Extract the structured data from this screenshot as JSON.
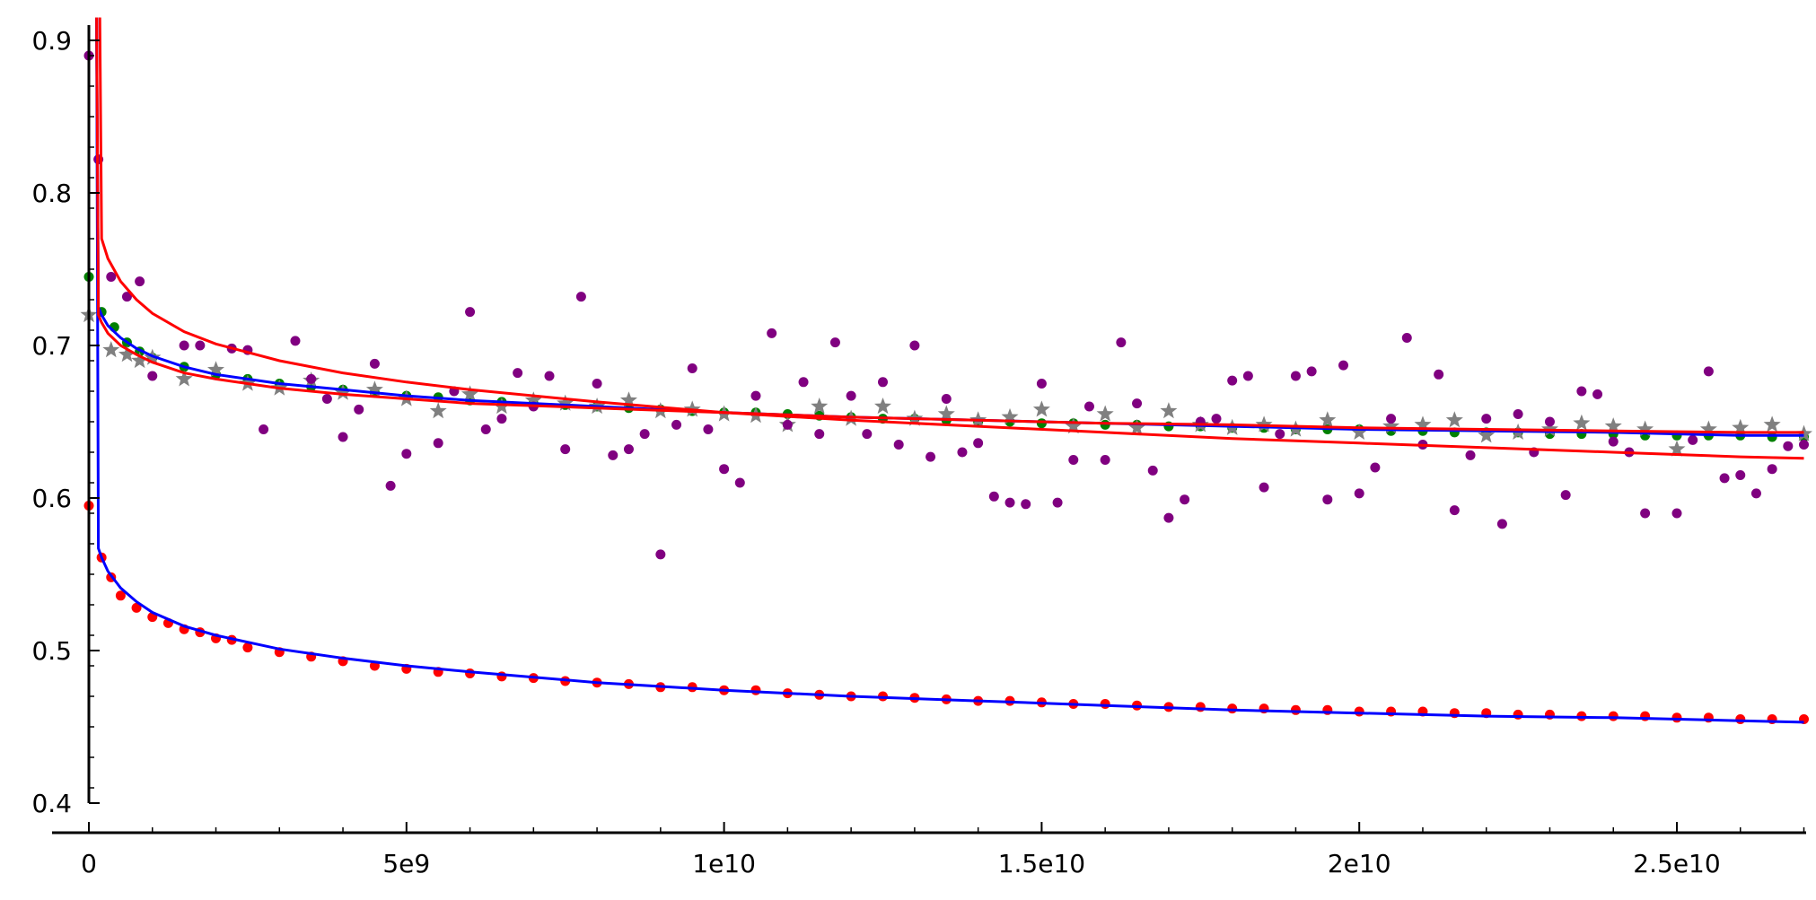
{
  "chart_data": {
    "type": "scatter",
    "title": "",
    "xlabel": "",
    "ylabel": "",
    "xlim": [
      -550000000.0,
      27500000000.0
    ],
    "ylim": [
      0.375,
      0.915
    ],
    "grid": false,
    "legend": "none",
    "x_ticks": [
      {
        "value": 0,
        "label": "0"
      },
      {
        "value": 5000000000.0,
        "label": "5e9"
      },
      {
        "value": 10000000000.0,
        "label": "1e10"
      },
      {
        "value": 15000000000.0,
        "label": "1.5e10"
      },
      {
        "value": 20000000000.0,
        "label": "2e10"
      },
      {
        "value": 25000000000.0,
        "label": "2.5e10"
      }
    ],
    "y_ticks": [
      {
        "value": 0.4,
        "label": "0.4"
      },
      {
        "value": 0.5,
        "label": "0.5"
      },
      {
        "value": 0.6,
        "label": "0.6"
      },
      {
        "value": 0.7,
        "label": "0.7"
      },
      {
        "value": 0.8,
        "label": "0.8"
      },
      {
        "value": 0.9,
        "label": "0.9"
      }
    ],
    "series": [
      {
        "kind": "points",
        "color": "#ff0000",
        "marker": "circle",
        "x": [
          0,
          200000000.0,
          350000000.0,
          500000000.0,
          750000000.0,
          1000000000.0,
          1250000000.0,
          1500000000.0,
          1750000000.0,
          2000000000.0,
          2250000000.0,
          2500000000.0,
          3000000000.0,
          3500000000.0,
          4000000000.0,
          4500000000.0,
          5000000000.0,
          5500000000.0,
          6000000000.0,
          6500000000.0,
          7000000000.0,
          7500000000.0,
          8000000000.0,
          8500000000.0,
          9000000000.0,
          9500000000.0,
          10000000000.0,
          10500000000.0,
          11000000000.0,
          11500000000.0,
          12000000000.0,
          12500000000.0,
          13000000000.0,
          13500000000.0,
          14000000000.0,
          14500000000.0,
          15000000000.0,
          15500000000.0,
          16000000000.0,
          16500000000.0,
          17000000000.0,
          17500000000.0,
          18000000000.0,
          18500000000.0,
          19000000000.0,
          19500000000.0,
          20000000000.0,
          20500000000.0,
          21000000000.0,
          21500000000.0,
          22000000000.0,
          22500000000.0,
          23000000000.0,
          23500000000.0,
          24000000000.0,
          24500000000.0,
          25000000000.0,
          25500000000.0,
          26000000000.0,
          26500000000.0,
          27000000000.0
        ],
        "y": [
          0.595,
          0.561,
          0.548,
          0.536,
          0.528,
          0.522,
          0.518,
          0.514,
          0.512,
          0.508,
          0.507,
          0.502,
          0.499,
          0.496,
          0.493,
          0.49,
          0.488,
          0.486,
          0.485,
          0.483,
          0.482,
          0.48,
          0.479,
          0.478,
          0.476,
          0.476,
          0.474,
          0.474,
          0.472,
          0.471,
          0.47,
          0.47,
          0.469,
          0.468,
          0.467,
          0.467,
          0.466,
          0.465,
          0.465,
          0.464,
          0.463,
          0.463,
          0.462,
          0.462,
          0.461,
          0.461,
          0.46,
          0.46,
          0.46,
          0.459,
          0.459,
          0.458,
          0.458,
          0.457,
          0.457,
          0.457,
          0.456,
          0.456,
          0.455,
          0.455,
          0.455
        ]
      },
      {
        "kind": "points",
        "color": "#008000",
        "marker": "circle",
        "x": [
          0,
          200000000.0,
          400000000.0,
          600000000.0,
          800000000.0,
          1000000000.0,
          1500000000.0,
          2000000000.0,
          2500000000.0,
          3000000000.0,
          3500000000.0,
          4000000000.0,
          4500000000.0,
          5000000000.0,
          5500000000.0,
          6000000000.0,
          6500000000.0,
          7000000000.0,
          7500000000.0,
          8000000000.0,
          8500000000.0,
          9000000000.0,
          9500000000.0,
          10000000000.0,
          10500000000.0,
          11000000000.0,
          11500000000.0,
          12000000000.0,
          12500000000.0,
          13000000000.0,
          13500000000.0,
          14000000000.0,
          14500000000.0,
          15000000000.0,
          15500000000.0,
          16000000000.0,
          16500000000.0,
          17000000000.0,
          17500000000.0,
          18000000000.0,
          18500000000.0,
          19000000000.0,
          19500000000.0,
          20000000000.0,
          20500000000.0,
          21000000000.0,
          21500000000.0,
          22000000000.0,
          22500000000.0,
          23000000000.0,
          23500000000.0,
          24000000000.0,
          24500000000.0,
          25000000000.0,
          25500000000.0,
          26000000000.0,
          26500000000.0,
          27000000000.0
        ],
        "y": [
          0.745,
          0.722,
          0.712,
          0.702,
          0.696,
          0.692,
          0.686,
          0.681,
          0.678,
          0.675,
          0.673,
          0.671,
          0.669,
          0.667,
          0.666,
          0.664,
          0.663,
          0.662,
          0.661,
          0.66,
          0.659,
          0.658,
          0.657,
          0.656,
          0.656,
          0.655,
          0.654,
          0.653,
          0.652,
          0.652,
          0.651,
          0.65,
          0.65,
          0.649,
          0.649,
          0.648,
          0.648,
          0.647,
          0.647,
          0.646,
          0.646,
          0.645,
          0.645,
          0.645,
          0.644,
          0.644,
          0.643,
          0.643,
          0.643,
          0.642,
          0.642,
          0.642,
          0.641,
          0.641,
          0.641,
          0.641,
          0.64,
          0.64
        ]
      },
      {
        "kind": "points",
        "color": "#808080",
        "marker": "star",
        "x": [
          0,
          350000000.0,
          600000000.0,
          800000000.0,
          1000000000.0,
          1500000000.0,
          2000000000.0,
          2500000000.0,
          3000000000.0,
          3500000000.0,
          4000000000.0,
          4500000000.0,
          5000000000.0,
          5500000000.0,
          6000000000.0,
          6500000000.0,
          7000000000.0,
          7500000000.0,
          8000000000.0,
          8500000000.0,
          9000000000.0,
          9500000000.0,
          10000000000.0,
          10500000000.0,
          11000000000.0,
          11500000000.0,
          12000000000.0,
          12500000000.0,
          13000000000.0,
          13500000000.0,
          14000000000.0,
          14500000000.0,
          15000000000.0,
          15500000000.0,
          16000000000.0,
          16500000000.0,
          17000000000.0,
          17500000000.0,
          18000000000.0,
          18500000000.0,
          19000000000.0,
          19500000000.0,
          20000000000.0,
          20500000000.0,
          21000000000.0,
          21500000000.0,
          22000000000.0,
          22500000000.0,
          23000000000.0,
          23500000000.0,
          24000000000.0,
          24500000000.0,
          25000000000.0,
          25500000000.0,
          26000000000.0,
          26500000000.0,
          27000000000.0
        ],
        "y": [
          0.72,
          0.697,
          0.694,
          0.69,
          0.692,
          0.678,
          0.684,
          0.675,
          0.672,
          0.677,
          0.669,
          0.671,
          0.665,
          0.657,
          0.668,
          0.66,
          0.664,
          0.662,
          0.66,
          0.664,
          0.657,
          0.658,
          0.655,
          0.654,
          0.648,
          0.66,
          0.652,
          0.66,
          0.652,
          0.655,
          0.651,
          0.653,
          0.658,
          0.647,
          0.655,
          0.646,
          0.657,
          0.648,
          0.646,
          0.648,
          0.645,
          0.651,
          0.643,
          0.647,
          0.648,
          0.651,
          0.641,
          0.643,
          0.645,
          0.649,
          0.647,
          0.645,
          0.632,
          0.645,
          0.646,
          0.648,
          0.642
        ]
      },
      {
        "kind": "points",
        "color": "#800080",
        "marker": "circle",
        "x": [
          0,
          150000000.0,
          350000000.0,
          600000000.0,
          800000000.0,
          1000000000.0,
          1500000000.0,
          1750000000.0,
          2250000000.0,
          2500000000.0,
          2750000000.0,
          3250000000.0,
          3500000000.0,
          3750000000.0,
          4000000000.0,
          4250000000.0,
          4500000000.0,
          4750000000.0,
          5000000000.0,
          5500000000.0,
          5750000000.0,
          6000000000.0,
          6250000000.0,
          6500000000.0,
          6750000000.0,
          7000000000.0,
          7250000000.0,
          7500000000.0,
          7750000000.0,
          8000000000.0,
          8250000000.0,
          8500000000.0,
          8750000000.0,
          9000000000.0,
          9250000000.0,
          9500000000.0,
          9750000000.0,
          10000000000.0,
          10250000000.0,
          10500000000.0,
          10750000000.0,
          11000000000.0,
          11250000000.0,
          11500000000.0,
          11750000000.0,
          12000000000.0,
          12250000000.0,
          12500000000.0,
          12750000000.0,
          13000000000.0,
          13250000000.0,
          13500000000.0,
          13750000000.0,
          14000000000.0,
          14250000000.0,
          14500000000.0,
          14750000000.0,
          15000000000.0,
          15250000000.0,
          15500000000.0,
          15750000000.0,
          16000000000.0,
          16250000000.0,
          16500000000.0,
          16750000000.0,
          17000000000.0,
          17250000000.0,
          17500000000.0,
          17750000000.0,
          18000000000.0,
          18250000000.0,
          18500000000.0,
          18750000000.0,
          19000000000.0,
          19250000000.0,
          19500000000.0,
          19750000000.0,
          20000000000.0,
          20250000000.0,
          20500000000.0,
          20750000000.0,
          21000000000.0,
          21250000000.0,
          21500000000.0,
          21750000000.0,
          22000000000.0,
          22250000000.0,
          22500000000.0,
          22750000000.0,
          23000000000.0,
          23250000000.0,
          23500000000.0,
          23750000000.0,
          24000000000.0,
          24250000000.0,
          24500000000.0,
          25000000000.0,
          25250000000.0,
          25500000000.0,
          25750000000.0,
          26000000000.0,
          26250000000.0,
          26500000000.0,
          26750000000.0,
          27000000000.0
        ],
        "y": [
          0.89,
          0.822,
          0.745,
          0.732,
          0.742,
          0.68,
          0.7,
          0.7,
          0.698,
          0.697,
          0.645,
          0.703,
          0.678,
          0.665,
          0.64,
          0.658,
          0.688,
          0.608,
          0.629,
          0.636,
          0.67,
          0.722,
          0.645,
          0.652,
          0.682,
          0.66,
          0.68,
          0.632,
          0.732,
          0.675,
          0.628,
          0.632,
          0.642,
          0.563,
          0.648,
          0.685,
          0.645,
          0.619,
          0.61,
          0.667,
          0.708,
          0.648,
          0.676,
          0.642,
          0.702,
          0.667,
          0.642,
          0.676,
          0.635,
          0.7,
          0.627,
          0.665,
          0.63,
          0.636,
          0.601,
          0.597,
          0.596,
          0.675,
          0.597,
          0.625,
          0.66,
          0.625,
          0.702,
          0.662,
          0.618,
          0.587,
          0.599,
          0.65,
          0.652,
          0.677,
          0.68,
          0.607,
          0.642,
          0.68,
          0.683,
          0.599,
          0.687,
          0.603,
          0.62,
          0.652,
          0.705,
          0.635,
          0.681,
          0.592,
          0.628,
          0.652,
          0.583,
          0.655,
          0.63,
          0.65,
          0.602,
          0.67,
          0.668,
          0.637,
          0.63,
          0.59,
          0.59,
          0.638,
          0.683,
          0.613,
          0.615,
          0.603,
          0.619,
          0.634,
          0.635
        ]
      },
      {
        "kind": "curve",
        "color": "#0000ff",
        "x": [
          150000000.0,
          200000000.0,
          300000000.0,
          500000000.0,
          750000000.0,
          1000000000.0,
          1500000000.0,
          2000000000.0,
          3000000000.0,
          4000000000.0,
          5000000000.0,
          6000000000.0,
          8000000000.0,
          10000000000.0,
          12000000000.0,
          14000000000.0,
          16000000000.0,
          18000000000.0,
          20000000000.0,
          22000000000.0,
          24000000000.0,
          26000000000.0,
          27000000000.0
        ],
        "y": [
          0.567,
          0.561,
          0.552,
          0.541,
          0.532,
          0.525,
          0.516,
          0.51,
          0.501,
          0.495,
          0.49,
          0.486,
          0.479,
          0.474,
          0.47,
          0.467,
          0.464,
          0.461,
          0.459,
          0.457,
          0.456,
          0.454,
          0.453
        ]
      },
      {
        "kind": "curve",
        "color": "#0000ff",
        "x": [
          150000000.0,
          200000000.0,
          300000000.0,
          500000000.0,
          750000000.0,
          1000000000.0,
          1500000000.0,
          2000000000.0,
          3000000000.0,
          4000000000.0,
          5000000000.0,
          6000000000.0,
          8000000000.0,
          10000000000.0,
          12000000000.0,
          14000000000.0,
          16000000000.0,
          18000000000.0,
          20000000000.0,
          22000000000.0,
          24000000000.0,
          26000000000.0,
          27000000000.0
        ],
        "y": [
          0.725,
          0.72,
          0.713,
          0.705,
          0.698,
          0.693,
          0.686,
          0.681,
          0.675,
          0.671,
          0.667,
          0.664,
          0.66,
          0.656,
          0.653,
          0.651,
          0.649,
          0.647,
          0.645,
          0.644,
          0.643,
          0.641,
          0.641
        ]
      },
      {
        "kind": "curve",
        "color": "#ff0000",
        "x": [
          150000000.0,
          200000000.0,
          300000000.0,
          500000000.0,
          750000000.0,
          1000000000.0,
          1500000000.0,
          2000000000.0,
          3000000000.0,
          4000000000.0,
          5000000000.0,
          6000000000.0,
          8000000000.0,
          10000000000.0,
          12000000000.0,
          14000000000.0,
          16000000000.0,
          18000000000.0,
          20000000000.0,
          22000000000.0,
          24000000000.0,
          26000000000.0,
          27000000000.0
        ],
        "y": [
          0.72,
          0.715,
          0.708,
          0.7,
          0.694,
          0.689,
          0.682,
          0.678,
          0.672,
          0.668,
          0.665,
          0.662,
          0.659,
          0.656,
          0.653,
          0.651,
          0.649,
          0.648,
          0.646,
          0.645,
          0.644,
          0.643,
          0.643
        ]
      },
      {
        "kind": "curve",
        "color": "#ff0000",
        "x": [
          200000000.0,
          300000000.0,
          500000000.0,
          750000000.0,
          1000000000.0,
          1500000000.0,
          2000000000.0,
          3000000000.0,
          4000000000.0,
          5000000000.0,
          6000000000.0,
          8000000000.0,
          10000000000.0,
          12000000000.0,
          14000000000.0,
          16000000000.0,
          18000000000.0,
          20000000000.0,
          22000000000.0,
          24000000000.0,
          26000000000.0,
          27000000000.0
        ],
        "y": [
          0.77,
          0.757,
          0.742,
          0.73,
          0.721,
          0.709,
          0.701,
          0.69,
          0.682,
          0.676,
          0.671,
          0.663,
          0.656,
          0.651,
          0.647,
          0.643,
          0.639,
          0.636,
          0.633,
          0.63,
          0.627,
          0.626
        ]
      }
    ]
  }
}
